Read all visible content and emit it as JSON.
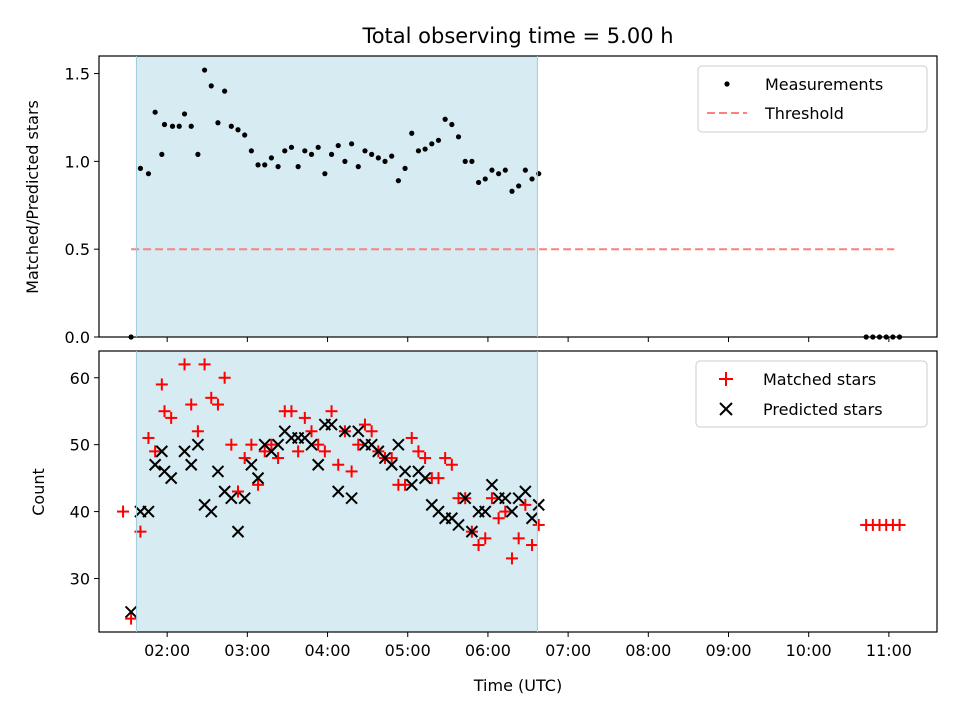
{
  "title": "Total observing time = 5.00 h",
  "xlabel": "Time (UTC)",
  "x_ticks": [
    "02:00",
    "03:00",
    "04:00",
    "05:00",
    "06:00",
    "07:00",
    "08:00",
    "09:00",
    "10:00",
    "11:00"
  ],
  "colors": {
    "span": "#add8e6",
    "matched": "#ff0000",
    "predicted": "#000000",
    "threshold": "#ff7f7f",
    "measurement": "#000000"
  },
  "chart_data": [
    {
      "type": "scatter",
      "ylabel": "Matched/Predicted stars",
      "xlim": [
        "01:09",
        "11:36"
      ],
      "ylim": [
        0,
        1.6
      ],
      "y_ticks": [
        "0.0",
        "0.5",
        "1.0",
        "1.5"
      ],
      "observing_window": [
        "01:37",
        "06:37"
      ],
      "legend": {
        "placement": "top-right",
        "entries": [
          "Measurements",
          "Threshold"
        ]
      },
      "threshold": {
        "name": "Threshold",
        "y": 0.5,
        "x_range": [
          "01:33",
          "11:04"
        ]
      },
      "series": [
        {
          "name": "Measurements",
          "points": [
            [
              "01:33",
              0.0
            ],
            [
              "01:40",
              0.96
            ],
            [
              "01:46",
              0.93
            ],
            [
              "01:51",
              1.28
            ],
            [
              "01:56",
              1.04
            ],
            [
              "01:58",
              1.21
            ],
            [
              "02:04",
              1.2
            ],
            [
              "02:09",
              1.2
            ],
            [
              "02:13",
              1.27
            ],
            [
              "02:18",
              1.2
            ],
            [
              "02:23",
              1.04
            ],
            [
              "02:28",
              1.52
            ],
            [
              "02:33",
              1.43
            ],
            [
              "02:38",
              1.22
            ],
            [
              "02:43",
              1.4
            ],
            [
              "02:48",
              1.2
            ],
            [
              "02:53",
              1.18
            ],
            [
              "02:58",
              1.15
            ],
            [
              "03:03",
              1.06
            ],
            [
              "03:08",
              0.98
            ],
            [
              "03:13",
              0.98
            ],
            [
              "03:18",
              1.02
            ],
            [
              "03:23",
              0.97
            ],
            [
              "03:28",
              1.06
            ],
            [
              "03:33",
              1.08
            ],
            [
              "03:38",
              0.97
            ],
            [
              "03:43",
              1.06
            ],
            [
              "03:48",
              1.04
            ],
            [
              "03:53",
              1.08
            ],
            [
              "03:58",
              0.93
            ],
            [
              "04:03",
              1.04
            ],
            [
              "04:08",
              1.09
            ],
            [
              "04:13",
              1.0
            ],
            [
              "04:18",
              1.1
            ],
            [
              "04:23",
              0.97
            ],
            [
              "04:28",
              1.06
            ],
            [
              "04:33",
              1.04
            ],
            [
              "04:38",
              1.02
            ],
            [
              "04:43",
              1.0
            ],
            [
              "04:48",
              1.03
            ],
            [
              "04:53",
              0.89
            ],
            [
              "04:58",
              0.96
            ],
            [
              "05:03",
              1.16
            ],
            [
              "05:08",
              1.06
            ],
            [
              "05:13",
              1.07
            ],
            [
              "05:18",
              1.1
            ],
            [
              "05:23",
              1.12
            ],
            [
              "05:28",
              1.24
            ],
            [
              "05:33",
              1.21
            ],
            [
              "05:38",
              1.14
            ],
            [
              "05:43",
              1.0
            ],
            [
              "05:48",
              1.0
            ],
            [
              "05:53",
              0.88
            ],
            [
              "05:58",
              0.9
            ],
            [
              "06:03",
              0.95
            ],
            [
              "06:08",
              0.93
            ],
            [
              "06:13",
              0.95
            ],
            [
              "06:18",
              0.83
            ],
            [
              "06:23",
              0.86
            ],
            [
              "06:28",
              0.95
            ],
            [
              "06:33",
              0.9
            ],
            [
              "06:38",
              0.93
            ],
            [
              "10:43",
              0.0
            ],
            [
              "10:48",
              0.0
            ],
            [
              "10:53",
              0.0
            ],
            [
              "10:58",
              0.0
            ],
            [
              "11:03",
              0.0
            ],
            [
              "11:08",
              0.0
            ]
          ]
        }
      ]
    },
    {
      "type": "scatter",
      "ylabel": "Count",
      "xlim": [
        "01:09",
        "11:36"
      ],
      "ylim": [
        22,
        64
      ],
      "y_ticks": [
        "30",
        "40",
        "50",
        "60"
      ],
      "observing_window": [
        "01:37",
        "06:37"
      ],
      "legend": {
        "placement": "top-right",
        "entries": [
          "Matched stars",
          "Predicted stars"
        ]
      },
      "series": [
        {
          "name": "Matched stars",
          "marker": "+",
          "points": [
            [
              "01:27",
              40
            ],
            [
              "01:33",
              24
            ],
            [
              "01:40",
              37
            ],
            [
              "01:46",
              51
            ],
            [
              "01:51",
              49
            ],
            [
              "01:56",
              59
            ],
            [
              "01:58",
              55
            ],
            [
              "02:03",
              54
            ],
            [
              "02:13",
              62
            ],
            [
              "02:18",
              56
            ],
            [
              "02:23",
              52
            ],
            [
              "02:28",
              62
            ],
            [
              "02:33",
              57
            ],
            [
              "02:38",
              56
            ],
            [
              "02:43",
              60
            ],
            [
              "02:48",
              50
            ],
            [
              "02:53",
              43
            ],
            [
              "02:58",
              48
            ],
            [
              "03:03",
              50
            ],
            [
              "03:08",
              44
            ],
            [
              "03:13",
              49
            ],
            [
              "03:18",
              50
            ],
            [
              "03:23",
              48
            ],
            [
              "03:28",
              55
            ],
            [
              "03:33",
              55
            ],
            [
              "03:38",
              49
            ],
            [
              "03:43",
              54
            ],
            [
              "03:48",
              52
            ],
            [
              "03:53",
              50
            ],
            [
              "03:58",
              49
            ],
            [
              "04:03",
              55
            ],
            [
              "04:08",
              47
            ],
            [
              "04:13",
              52
            ],
            [
              "04:18",
              46
            ],
            [
              "04:23",
              50
            ],
            [
              "04:28",
              53
            ],
            [
              "04:33",
              52
            ],
            [
              "04:38",
              49
            ],
            [
              "04:43",
              48
            ],
            [
              "04:48",
              48
            ],
            [
              "04:53",
              44
            ],
            [
              "04:58",
              44
            ],
            [
              "05:03",
              51
            ],
            [
              "05:08",
              49
            ],
            [
              "05:13",
              48
            ],
            [
              "05:18",
              45
            ],
            [
              "05:23",
              45
            ],
            [
              "05:28",
              48
            ],
            [
              "05:33",
              47
            ],
            [
              "05:38",
              42
            ],
            [
              "05:43",
              42
            ],
            [
              "05:48",
              37
            ],
            [
              "05:53",
              35
            ],
            [
              "05:58",
              36
            ],
            [
              "06:03",
              42
            ],
            [
              "06:08",
              39
            ],
            [
              "06:13",
              40
            ],
            [
              "06:18",
              33
            ],
            [
              "06:23",
              36
            ],
            [
              "06:28",
              41
            ],
            [
              "06:33",
              35
            ],
            [
              "06:38",
              38
            ],
            [
              "10:43",
              38
            ],
            [
              "10:48",
              38
            ],
            [
              "10:53",
              38
            ],
            [
              "10:58",
              38
            ],
            [
              "11:03",
              38
            ],
            [
              "11:08",
              38
            ]
          ]
        },
        {
          "name": "Predicted stars",
          "marker": "x",
          "points": [
            [
              "01:33",
              25
            ],
            [
              "01:40",
              40
            ],
            [
              "01:46",
              40
            ],
            [
              "01:51",
              47
            ],
            [
              "01:56",
              49
            ],
            [
              "01:58",
              46
            ],
            [
              "02:03",
              45
            ],
            [
              "02:13",
              49
            ],
            [
              "02:18",
              47
            ],
            [
              "02:23",
              50
            ],
            [
              "02:28",
              41
            ],
            [
              "02:33",
              40
            ],
            [
              "02:38",
              46
            ],
            [
              "02:43",
              43
            ],
            [
              "02:48",
              42
            ],
            [
              "02:53",
              37
            ],
            [
              "02:58",
              42
            ],
            [
              "03:03",
              47
            ],
            [
              "03:08",
              45
            ],
            [
              "03:13",
              50
            ],
            [
              "03:18",
              49
            ],
            [
              "03:23",
              50
            ],
            [
              "03:28",
              52
            ],
            [
              "03:33",
              51
            ],
            [
              "03:38",
              51
            ],
            [
              "03:43",
              51
            ],
            [
              "03:48",
              50
            ],
            [
              "03:53",
              47
            ],
            [
              "03:58",
              53
            ],
            [
              "04:03",
              53
            ],
            [
              "04:08",
              43
            ],
            [
              "04:13",
              52
            ],
            [
              "04:18",
              42
            ],
            [
              "04:23",
              52
            ],
            [
              "04:28",
              50
            ],
            [
              "04:33",
              50
            ],
            [
              "04:38",
              49
            ],
            [
              "04:43",
              48
            ],
            [
              "04:48",
              47
            ],
            [
              "04:53",
              50
            ],
            [
              "04:58",
              46
            ],
            [
              "05:03",
              44
            ],
            [
              "05:08",
              46
            ],
            [
              "05:13",
              45
            ],
            [
              "05:18",
              41
            ],
            [
              "05:23",
              40
            ],
            [
              "05:28",
              39
            ],
            [
              "05:33",
              39
            ],
            [
              "05:38",
              38
            ],
            [
              "05:43",
              42
            ],
            [
              "05:48",
              37
            ],
            [
              "05:53",
              40
            ],
            [
              "05:58",
              40
            ],
            [
              "06:03",
              44
            ],
            [
              "06:08",
              42
            ],
            [
              "06:13",
              42
            ],
            [
              "06:18",
              40
            ],
            [
              "06:23",
              42
            ],
            [
              "06:28",
              43
            ],
            [
              "06:33",
              39
            ],
            [
              "06:38",
              41
            ]
          ]
        }
      ]
    }
  ]
}
